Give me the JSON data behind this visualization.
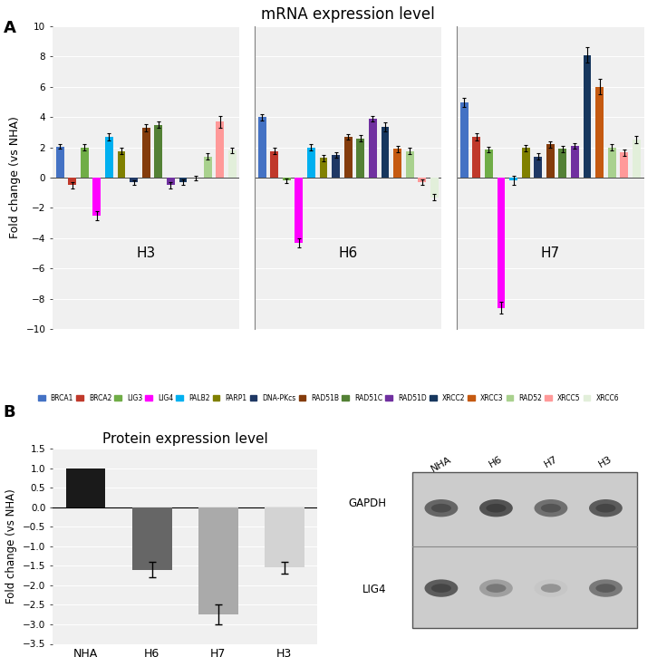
{
  "title_A": "mRNA expression level",
  "title_B": "Protein expression level",
  "ylabel_A": "Fold change (vs NHA)",
  "ylabel_B": "Fold change (vs NHA)",
  "ylim_A": [
    -10,
    10
  ],
  "ylim_B": [
    -3.5,
    1.5
  ],
  "yticks_A": [
    -10,
    -8,
    -6,
    -4,
    -2,
    0,
    2,
    4,
    6,
    8,
    10
  ],
  "yticks_B": [
    -3.5,
    -3.0,
    -2.5,
    -2.0,
    -1.5,
    -1.0,
    -0.5,
    0,
    0.5,
    1.0,
    1.5
  ],
  "genes": [
    "BRCA1",
    "BRCA2",
    "LIG3",
    "LIG4",
    "PALB2",
    "PARP1",
    "DNA-PKcs",
    "RAD51B",
    "RAD51C",
    "RAD51D",
    "XRCC2",
    "XRCC3",
    "RAD52",
    "XRCC5",
    "XRCC6"
  ],
  "colors": [
    "#4472c4",
    "#c0392b",
    "#70ad47",
    "#ff00ff",
    "#00b0f0",
    "#808000",
    "#1f3864",
    "#843c0c",
    "#538135",
    "#7030a0",
    "#17375e",
    "#c55a11",
    "#a9d18e",
    "#ff9999",
    "#e2efda"
  ],
  "H3_values": [
    2.05,
    -0.5,
    2.0,
    -2.5,
    2.7,
    1.75,
    -0.3,
    3.3,
    3.5,
    -0.5,
    -0.3,
    0.0,
    1.4,
    3.7,
    1.8
  ],
  "H3_errors": [
    0.15,
    0.2,
    0.2,
    0.3,
    0.25,
    0.2,
    0.15,
    0.25,
    0.2,
    0.2,
    0.2,
    0.15,
    0.2,
    0.4,
    0.2
  ],
  "H6_values": [
    4.0,
    1.75,
    -0.2,
    -4.3,
    2.0,
    1.3,
    1.5,
    2.7,
    2.6,
    3.9,
    3.35,
    1.9,
    1.75,
    -0.3,
    -1.3
  ],
  "H6_errors": [
    0.2,
    0.2,
    0.15,
    0.3,
    0.2,
    0.2,
    0.2,
    0.2,
    0.2,
    0.2,
    0.3,
    0.2,
    0.2,
    0.2,
    0.2
  ],
  "H7_values": [
    5.0,
    2.7,
    1.85,
    -8.6,
    -0.2,
    1.95,
    1.4,
    2.2,
    1.9,
    2.1,
    8.1,
    6.0,
    2.0,
    1.65,
    2.5
  ],
  "H7_errors": [
    0.3,
    0.25,
    0.2,
    0.4,
    0.3,
    0.2,
    0.2,
    0.2,
    0.2,
    0.2,
    0.5,
    0.5,
    0.2,
    0.2,
    0.25
  ],
  "protein_categories": [
    "NHA",
    "H6",
    "H7",
    "H3"
  ],
  "protein_values": [
    1.0,
    -1.6,
    -2.75,
    -1.55
  ],
  "protein_errors": [
    0.0,
    0.2,
    0.25,
    0.15
  ],
  "protein_colors": [
    "#1a1a1a",
    "#666666",
    "#aaaaaa",
    "#d3d3d3"
  ],
  "western_labels_top": [
    "NHA",
    "H6",
    "H7",
    "H3"
  ],
  "western_labels_left": [
    "GAPDH",
    "LIG4"
  ],
  "gapdh_intensities": [
    0.8,
    0.9,
    0.75,
    0.85
  ],
  "lig4_intensities": [
    0.85,
    0.5,
    0.3,
    0.7
  ]
}
